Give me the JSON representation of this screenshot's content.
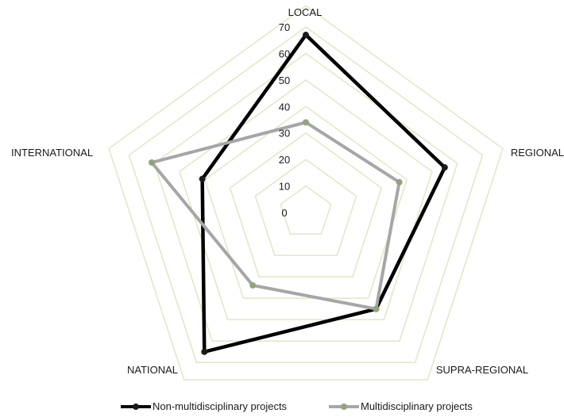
{
  "chart_data": {
    "type": "radar",
    "categories": [
      "LOCAL",
      "REGIONAL",
      "SUPRA-REGIONAL",
      "NATIONAL",
      "INTERNATIONAL"
    ],
    "series": [
      {
        "name": "Non-multidisciplinary projects",
        "values": [
          67,
          55,
          45,
          65,
          41
        ],
        "color": "#000000",
        "marker_color": "#1a1a1a"
      },
      {
        "name": "Multidisciplinary projects",
        "values": [
          34,
          37,
          45,
          34,
          61
        ],
        "color": "#a6a6a6",
        "marker_color": "#93a37a"
      }
    ],
    "ticks": [
      0,
      10,
      20,
      30,
      40,
      50,
      60,
      70
    ],
    "rlim": [
      0,
      70
    ],
    "grid": true,
    "grid_color": "#e2e6c6",
    "legend": "bottom"
  }
}
